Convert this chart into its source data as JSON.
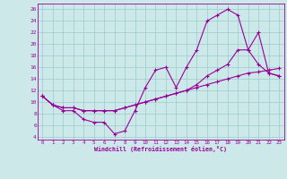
{
  "xlabel": "Windchill (Refroidissement éolien,°C)",
  "bg_color": "#cce8e8",
  "line_color": "#990099",
  "grid_color": "#99cccc",
  "xlim": [
    -0.5,
    23.5
  ],
  "ylim": [
    3.5,
    27
  ],
  "xticks": [
    0,
    1,
    2,
    3,
    4,
    5,
    6,
    7,
    8,
    9,
    10,
    11,
    12,
    13,
    14,
    15,
    16,
    17,
    18,
    19,
    20,
    21,
    22,
    23
  ],
  "yticks": [
    4,
    6,
    8,
    10,
    12,
    14,
    16,
    18,
    20,
    22,
    24,
    26
  ],
  "line1_x": [
    0,
    1,
    2,
    3,
    4,
    5,
    6,
    7,
    8,
    9,
    10,
    11,
    12,
    13,
    14,
    15,
    16,
    17,
    18,
    19,
    20,
    21,
    22,
    23
  ],
  "line1_y": [
    11.0,
    9.5,
    8.5,
    8.5,
    7.0,
    6.5,
    6.5,
    4.5,
    5.0,
    8.5,
    12.5,
    15.5,
    16.0,
    12.5,
    16.0,
    19.0,
    24.0,
    25.0,
    26.0,
    25.0,
    19.0,
    16.5,
    15.0,
    14.5
  ],
  "line2_x": [
    0,
    1,
    2,
    3,
    4,
    5,
    6,
    7,
    8,
    9,
    10,
    11,
    12,
    13,
    14,
    15,
    16,
    17,
    18,
    19,
    20,
    21,
    22,
    23
  ],
  "line2_y": [
    11.0,
    9.5,
    9.0,
    9.0,
    8.5,
    8.5,
    8.5,
    8.5,
    9.0,
    9.5,
    10.0,
    10.5,
    11.0,
    11.5,
    12.0,
    12.5,
    13.0,
    13.5,
    14.0,
    14.5,
    15.0,
    15.2,
    15.5,
    15.8
  ],
  "line3_x": [
    0,
    1,
    2,
    3,
    4,
    5,
    6,
    7,
    8,
    9,
    10,
    11,
    12,
    13,
    14,
    15,
    16,
    17,
    18,
    19,
    20,
    21,
    22,
    23
  ],
  "line3_y": [
    11.0,
    9.5,
    9.0,
    9.0,
    8.5,
    8.5,
    8.5,
    8.5,
    9.0,
    9.5,
    10.0,
    10.5,
    11.0,
    11.5,
    12.0,
    13.0,
    14.5,
    15.5,
    16.5,
    19.0,
    19.0,
    22.0,
    15.0,
    14.5
  ]
}
